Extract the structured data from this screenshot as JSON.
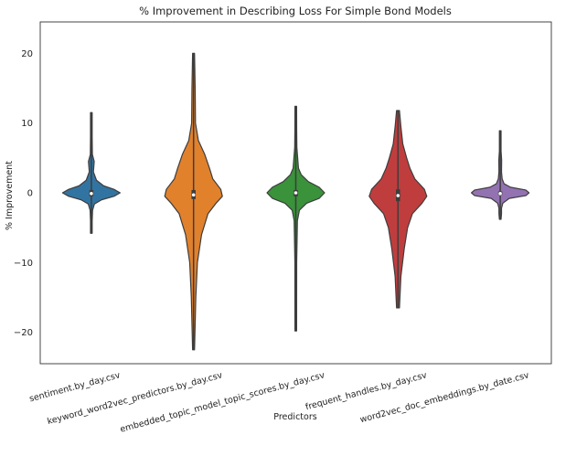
{
  "chart_data": {
    "type": "violin",
    "title": "% Improvement in Describing Loss For Simple Bond Models",
    "xlabel": "Predictors",
    "ylabel": "% Improvement",
    "ylim": [
      -24.5,
      24.5
    ],
    "yticks": [
      -20,
      -10,
      0,
      10,
      20
    ],
    "ytick_labels": [
      "−20",
      "−10",
      "0",
      "10",
      "20"
    ],
    "grid": false,
    "categories": [
      "sentiment.by_day.csv",
      "keyword_word2vec_predictors.by_day.csv",
      "embedded_topic_model_topic_scores.by_day.csv",
      "frequent_handles.by_day.csv",
      "word2vec_doc_embeddings.by_date.csv"
    ],
    "series": [
      {
        "category": "sentiment.by_day.csv",
        "color": "#3274a1",
        "min": -5.8,
        "q1": -0.5,
        "median": -0.1,
        "q3": 0.4,
        "max": 11.5,
        "density": [
          [
            -5.8,
            0.3
          ],
          [
            -4,
            0.6
          ],
          [
            -2.5,
            1.2
          ],
          [
            -1.6,
            3
          ],
          [
            -1,
            10
          ],
          [
            -0.5,
            22
          ],
          [
            0,
            28
          ],
          [
            0.5,
            22
          ],
          [
            1,
            12
          ],
          [
            1.8,
            5
          ],
          [
            3,
            2
          ],
          [
            4.5,
            2.8
          ],
          [
            5.5,
            1
          ],
          [
            8,
            0.5
          ],
          [
            11.5,
            0.3
          ]
        ]
      },
      {
        "category": "keyword_word2vec_predictors.by_day.csv",
        "color": "#e1812c",
        "min": -22.5,
        "q1": -0.9,
        "median": -0.3,
        "q3": 0.4,
        "max": 20,
        "density": [
          [
            -22.5,
            0.3
          ],
          [
            -15,
            0.7
          ],
          [
            -10,
            1.2
          ],
          [
            -6,
            2.5
          ],
          [
            -3,
            4.5
          ],
          [
            -1.5,
            7
          ],
          [
            -0.5,
            9
          ],
          [
            0.5,
            8.5
          ],
          [
            2,
            6
          ],
          [
            3.5,
            5
          ],
          [
            5.5,
            3.5
          ],
          [
            7.5,
            1.5
          ],
          [
            10,
            0.6
          ],
          [
            15,
            0.5
          ],
          [
            20,
            0.3
          ]
        ]
      },
      {
        "category": "embedded_topic_model_topic_scores.by_day.csv",
        "color": "#3a923a",
        "min": -19.8,
        "q1": -0.5,
        "median": 0.0,
        "q3": 0.4,
        "max": 12.4,
        "density": [
          [
            -19.8,
            0.3
          ],
          [
            -10,
            0.5
          ],
          [
            -4,
            0.9
          ],
          [
            -2.5,
            2
          ],
          [
            -1.5,
            6
          ],
          [
            -0.8,
            13
          ],
          [
            0,
            16
          ],
          [
            0.8,
            13
          ],
          [
            1.6,
            7
          ],
          [
            2.6,
            3
          ],
          [
            3.5,
            1.5
          ],
          [
            4.5,
            1.2
          ],
          [
            6.5,
            0.6
          ],
          [
            9,
            0.5
          ],
          [
            12.4,
            0.3
          ]
        ]
      },
      {
        "category": "frequent_handles.by_day.csv",
        "color": "#c03d3e",
        "min": -16.5,
        "q1": -1.2,
        "median": -0.4,
        "q3": 0.5,
        "max": 11.8,
        "density": [
          [
            -16.5,
            0.3
          ],
          [
            -12,
            0.6
          ],
          [
            -8,
            1.3
          ],
          [
            -5,
            2
          ],
          [
            -3,
            3
          ],
          [
            -1.5,
            5
          ],
          [
            -0.5,
            6
          ],
          [
            0.5,
            5.5
          ],
          [
            2,
            3.5
          ],
          [
            3.5,
            2.5
          ],
          [
            5,
            1.8
          ],
          [
            7,
            1
          ],
          [
            9.5,
            0.6
          ],
          [
            11.8,
            0.3
          ]
        ]
      },
      {
        "category": "word2vec_doc_embeddings.by_date.csv",
        "color": "#9372b2",
        "min": -3.8,
        "q1": -0.3,
        "median": -0.1,
        "q3": 0.2,
        "max": 8.9,
        "density": [
          [
            -3.8,
            0.3
          ],
          [
            -3,
            2
          ],
          [
            -2.2,
            2
          ],
          [
            -1.5,
            4
          ],
          [
            -0.8,
            14
          ],
          [
            -0.4,
            40
          ],
          [
            0,
            45
          ],
          [
            0.4,
            40
          ],
          [
            0.8,
            16
          ],
          [
            1.3,
            6
          ],
          [
            2,
            3
          ],
          [
            3,
            2
          ],
          [
            4.7,
            2.2
          ],
          [
            6,
            1
          ],
          [
            8.9,
            0.3
          ]
        ]
      }
    ]
  }
}
